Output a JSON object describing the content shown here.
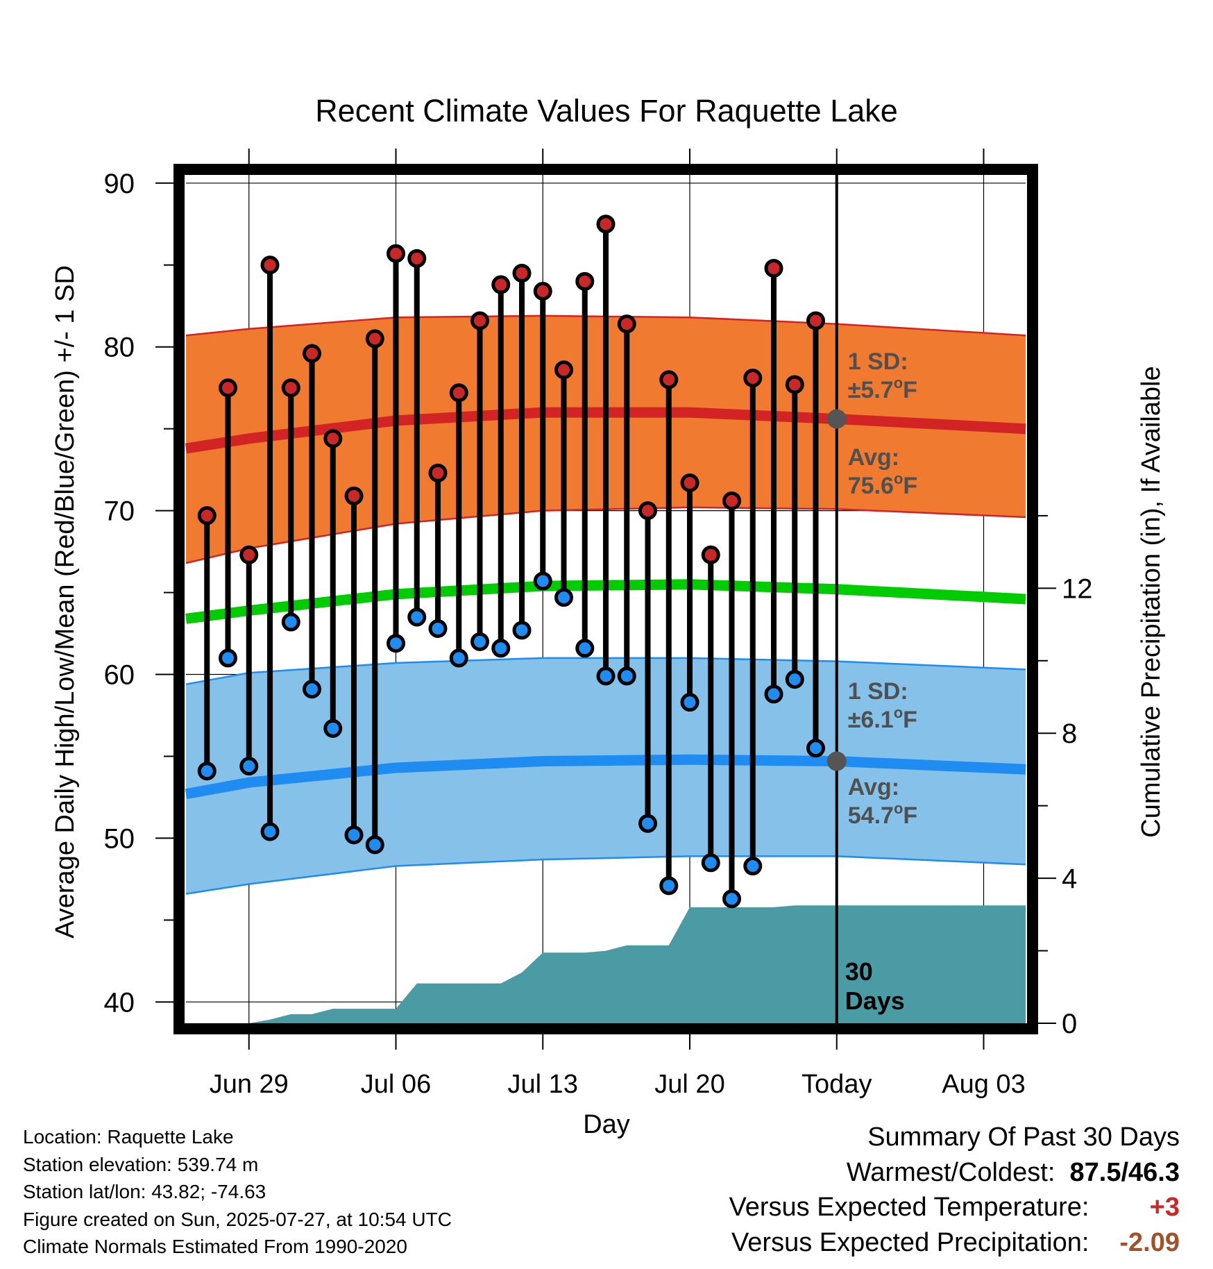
{
  "chart_data": {
    "type": "line",
    "title": "Recent Climate Values For Raquette Lake",
    "xlabel": "Day",
    "ylabel": "Average Daily High/Low/Mean (Red/Blue/Green) +/- 1 SD",
    "y2label": "Cumulative Precipitation (in), If Available",
    "ylim": [
      38.7,
      90.5
    ],
    "y_ticks": [
      40,
      50,
      60,
      70,
      80,
      90
    ],
    "y2lim": [
      0,
      23.4
    ],
    "y2_ticks": [
      0,
      4,
      8,
      12
    ],
    "xlim": [
      -3.0,
      37.0
    ],
    "x_ticks": [
      {
        "day": 0,
        "label": "Jun 29"
      },
      {
        "day": 7,
        "label": "Jul 06"
      },
      {
        "day": 14,
        "label": "Jul 13"
      },
      {
        "day": 21,
        "label": "Jul 20"
      },
      {
        "day": 28,
        "label": "Today"
      },
      {
        "day": 35,
        "label": "Aug 03"
      }
    ],
    "today_day": 28,
    "observed": {
      "days": [
        -2,
        -1,
        0,
        1,
        2,
        3,
        4,
        5,
        6,
        7,
        8,
        9,
        10,
        11,
        12,
        13,
        14,
        15,
        16,
        17,
        18,
        19,
        20,
        21,
        22,
        23,
        24,
        25,
        26,
        27
      ],
      "high": [
        69.7,
        77.5,
        67.3,
        85.0,
        77.5,
        79.6,
        74.4,
        70.9,
        80.5,
        85.7,
        85.4,
        72.3,
        77.2,
        81.6,
        83.8,
        84.5,
        83.4,
        78.6,
        84.0,
        87.5,
        81.4,
        70.0,
        78.0,
        71.7,
        67.3,
        70.6,
        78.1,
        84.8,
        77.7,
        81.6
      ],
      "low": [
        54.1,
        61.0,
        54.4,
        50.4,
        63.2,
        59.1,
        56.7,
        50.2,
        49.6,
        61.9,
        63.5,
        62.8,
        61.0,
        62.0,
        61.6,
        62.7,
        65.7,
        64.7,
        61.6,
        59.9,
        59.9,
        50.9,
        47.1,
        58.3,
        48.5,
        46.3,
        48.3,
        58.8,
        59.7,
        55.5
      ]
    },
    "normals": {
      "days": [
        -3,
        0,
        7,
        14,
        21,
        28,
        37
      ],
      "avg_high": [
        73.8,
        74.4,
        75.5,
        76.0,
        76.0,
        75.6,
        75.0
      ],
      "avg_low": [
        52.7,
        53.4,
        54.3,
        54.7,
        54.8,
        54.7,
        54.2
      ],
      "avg_mean": [
        63.4,
        63.9,
        64.9,
        65.4,
        65.5,
        65.2,
        64.6
      ],
      "high_sd_upper": [
        80.7,
        81.1,
        81.8,
        81.9,
        81.8,
        81.4,
        80.7
      ],
      "high_sd_lower": [
        66.8,
        67.7,
        69.2,
        70.0,
        70.2,
        70.1,
        69.6
      ],
      "low_sd_upper": [
        59.4,
        60.1,
        60.7,
        61.0,
        61.0,
        60.8,
        60.3
      ],
      "low_sd_lower": [
        46.6,
        47.2,
        48.3,
        48.7,
        48.9,
        48.9,
        48.4
      ]
    },
    "precip_cumulative": {
      "days": [
        -3,
        0,
        1,
        2,
        3,
        4,
        5,
        6,
        7,
        8,
        9,
        10,
        11,
        12,
        13,
        14,
        15,
        16,
        17,
        18,
        19,
        20,
        21,
        22,
        23,
        24,
        25,
        26,
        27,
        28,
        37
      ],
      "values": [
        0,
        0,
        0.1,
        0.25,
        0.25,
        0.4,
        0.4,
        0.4,
        0.4,
        1.1,
        1.1,
        1.1,
        1.1,
        1.1,
        1.4,
        1.95,
        1.95,
        1.95,
        2.0,
        2.15,
        2.15,
        2.15,
        3.2,
        3.2,
        3.2,
        3.2,
        3.2,
        3.25,
        3.25,
        3.25,
        3.25
      ]
    },
    "annotations": {
      "high_sd_label": "1 SD:",
      "high_sd_value": "±5.7",
      "high_avg_label": "Avg:",
      "high_avg_value": "75.6",
      "low_sd_label": "1 SD:",
      "low_sd_value": "±6.1",
      "low_avg_label": "Avg:",
      "low_avg_value": "54.7",
      "degree_symbol": "o",
      "unit": "F",
      "window_number": "30",
      "window_unit": "Days"
    },
    "colors": {
      "high_band": "#F07A30",
      "high_line": "#D22424",
      "low_band": "#85C1E9",
      "low_line": "#1E8CF0",
      "mean_line": "#00CC00",
      "precip": "#4A9BA4",
      "high_marker": "#C82828",
      "low_marker": "#1E8CF0",
      "annotation_text": "#505050",
      "warm_text": "#C82828",
      "precip_text": "#A0522D"
    }
  },
  "footer": {
    "location": "Location: Raquette Lake",
    "elevation": "Station elevation: 539.74 m",
    "latlon": "Station lat/lon: 43.82; -74.63",
    "created": "Figure created on Sun, 2025-07-27, at 10:54 UTC",
    "normals": "Climate Normals Estimated From 1990-2020"
  },
  "summary": {
    "heading": "Summary Of Past 30 Days",
    "warm_cold_label": "Warmest/Coldest:",
    "warm_cold_value": "87.5/46.3",
    "temp_label": "Versus Expected Temperature:",
    "temp_value": "+3",
    "precip_label": "Versus Expected Precipitation:",
    "precip_value": "-2.09"
  }
}
